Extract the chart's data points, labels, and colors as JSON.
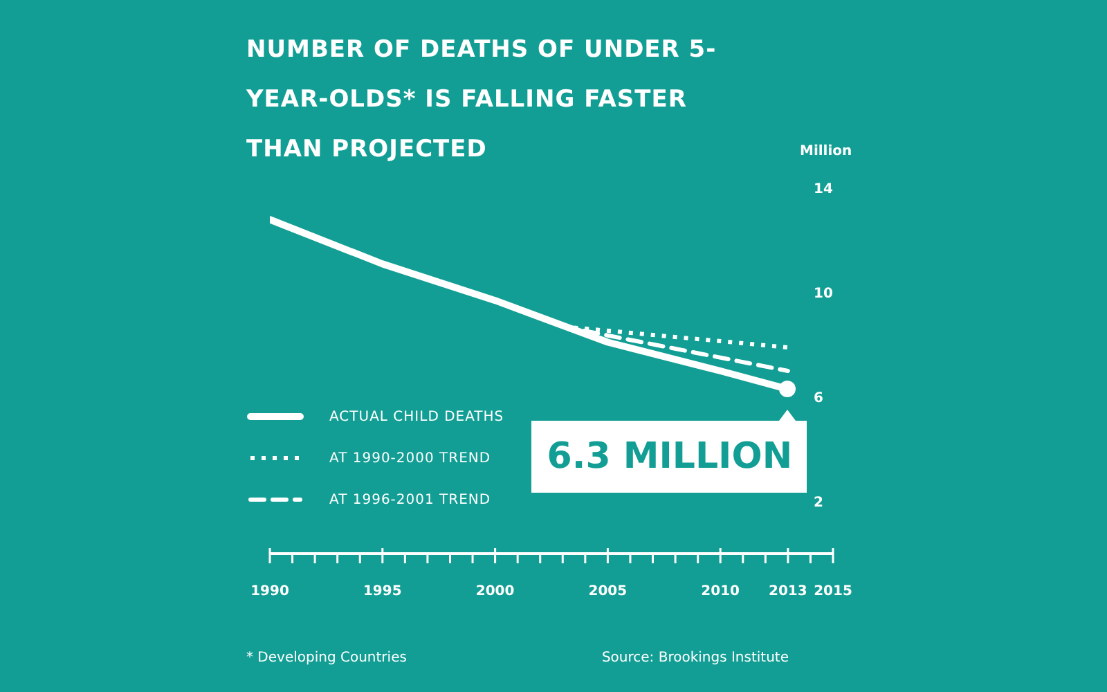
{
  "chart_data": {
    "type": "line",
    "title": "NUMBER OF DEATHS OF UNDER 5-YEAR-OLDS* IS FALLING FASTER THAN PROJECTED",
    "ylabel": "Million",
    "series": [
      {
        "name": "ACTUAL CHILD DEATHS",
        "color": "#ffffff",
        "line_style": "solid",
        "x": [
          1990,
          1995,
          2000,
          2005,
          2010,
          2013
        ],
        "values": [
          12.8,
          11.1,
          9.7,
          8.1,
          7.0,
          6.3
        ]
      },
      {
        "name": "AT 1990-2000 TREND",
        "color": "#ffffff",
        "line_style": "dotted",
        "x": [
          2003,
          2013
        ],
        "values": [
          8.7,
          7.9
        ]
      },
      {
        "name": "AT 1996-2001 TREND",
        "color": "#ffffff",
        "line_style": "dashed",
        "x": [
          2003,
          2013
        ],
        "values": [
          8.7,
          7.0
        ]
      }
    ],
    "xlim": [
      1990,
      2015
    ],
    "xticks": [
      1990,
      {
        "value": 1991,
        "label": null
      },
      {
        "value": 1992,
        "label": null
      },
      {
        "value": 1993,
        "label": null
      },
      {
        "value": 1994,
        "label": null
      },
      1995,
      {
        "value": 1996,
        "label": null
      },
      {
        "value": 1997,
        "label": null
      },
      {
        "value": 1998,
        "label": null
      },
      {
        "value": 1999,
        "label": null
      },
      2000,
      {
        "value": 2001,
        "label": null
      },
      {
        "value": 2002,
        "label": null
      },
      {
        "value": 2003,
        "label": null
      },
      {
        "value": 2004,
        "label": null
      },
      2005,
      {
        "value": 2006,
        "label": null
      },
      {
        "value": 2007,
        "label": null
      },
      {
        "value": 2008,
        "label": null
      },
      {
        "value": 2009,
        "label": null
      },
      2010,
      {
        "value": 2011,
        "label": null
      },
      {
        "value": 2012,
        "label": null
      },
      2013,
      {
        "value": 2014,
        "label": null
      },
      2015
    ],
    "ylim": [
      0,
      14
    ],
    "yticks": [
      2,
      6,
      10,
      14
    ],
    "grid": false,
    "legend": "bottom left",
    "annotations": [
      {
        "text": "6.3 MILLION",
        "x": 2013,
        "y": 6.3
      },
      "* Developing Countries",
      "Source: Brookings Institute"
    ]
  }
}
